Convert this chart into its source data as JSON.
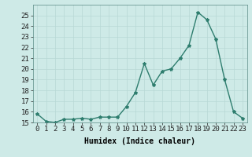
{
  "x": [
    0,
    1,
    2,
    3,
    4,
    5,
    6,
    7,
    8,
    9,
    10,
    11,
    12,
    13,
    14,
    15,
    16,
    17,
    18,
    19,
    20,
    21,
    22,
    23
  ],
  "y": [
    15.8,
    15.1,
    15.0,
    15.3,
    15.3,
    15.4,
    15.3,
    15.5,
    15.5,
    15.5,
    16.5,
    17.8,
    20.5,
    18.5,
    19.8,
    20.0,
    21.0,
    22.2,
    25.3,
    24.6,
    22.8,
    19.0,
    16.0,
    15.4
  ],
  "line_color": "#2e7d6e",
  "marker": "*",
  "bg_color": "#ceeae7",
  "grid_major_color": "#b8d8d5",
  "grid_minor_color": "#d6eeeb",
  "xlabel": "Humidex (Indice chaleur)",
  "ylim": [
    15,
    26
  ],
  "xlim": [
    -0.5,
    23.5
  ],
  "yticks": [
    15,
    16,
    17,
    18,
    19,
    20,
    21,
    22,
    23,
    24,
    25
  ],
  "xticks": [
    0,
    1,
    2,
    3,
    4,
    5,
    6,
    7,
    8,
    9,
    10,
    11,
    12,
    13,
    14,
    15,
    16,
    17,
    18,
    19,
    20,
    21,
    22,
    23
  ],
  "label_fontsize": 7,
  "tick_fontsize": 6.5,
  "linewidth": 1.0,
  "markersize": 3.0
}
